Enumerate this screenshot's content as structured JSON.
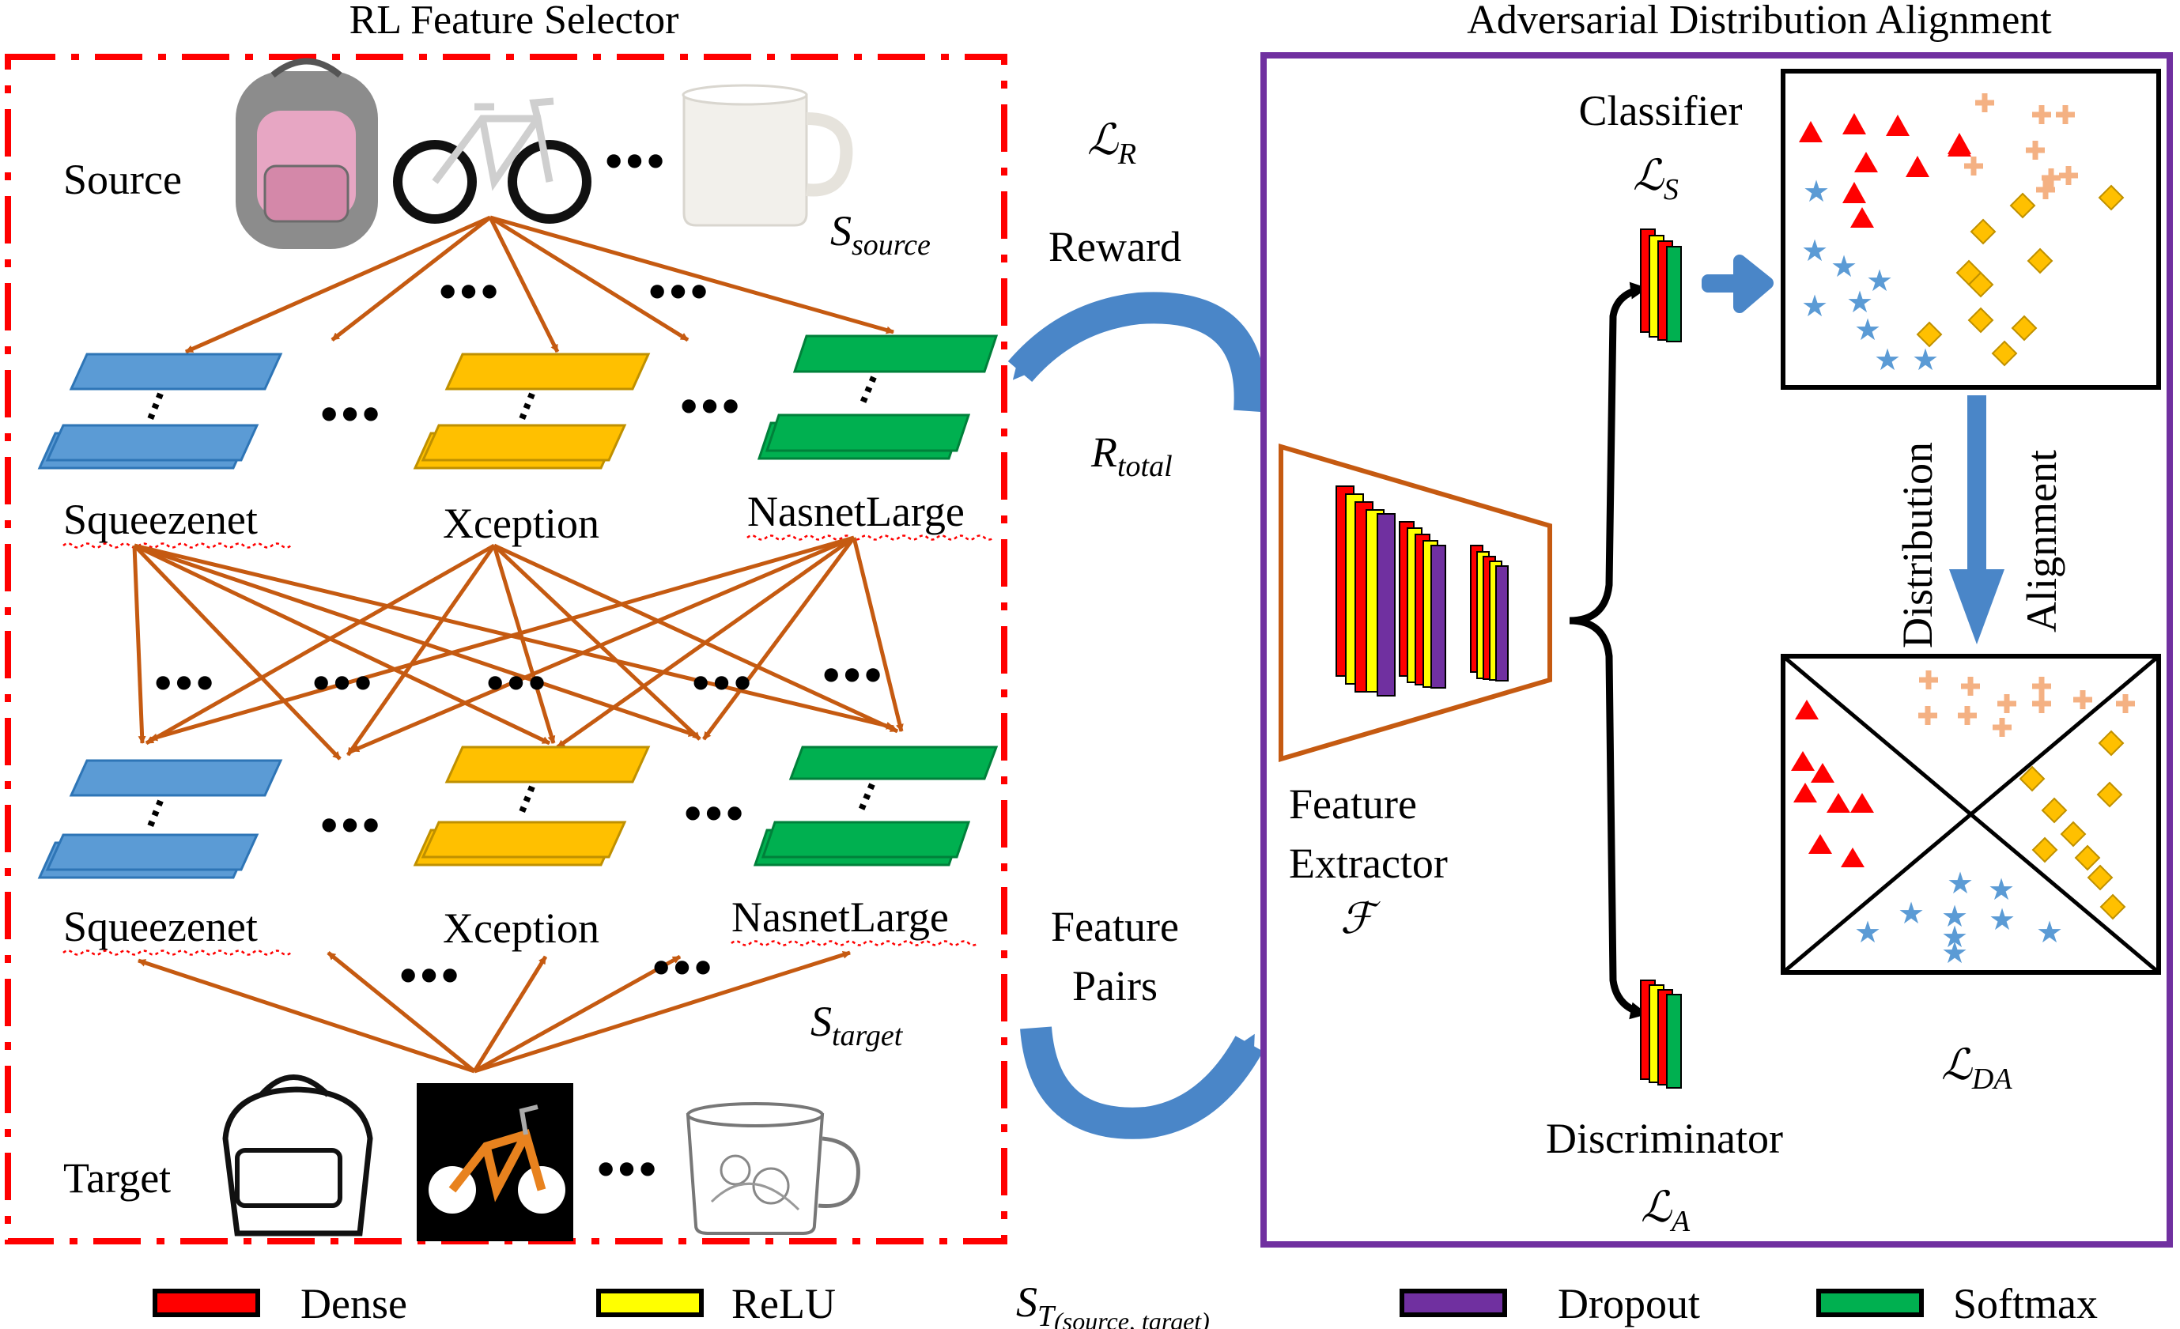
{
  "titles": {
    "rl_feature_selector": "RL  Feature Selector",
    "adversarial_alignment": "Adversarial Distribution Alignment"
  },
  "domains": {
    "source": "Source",
    "target": "Target",
    "s_source_main": "S",
    "s_source_sub": "source",
    "s_target_main": "S",
    "s_target_sub": "target"
  },
  "networks": {
    "top": [
      "Squeezenet",
      "Xception",
      "NasnetLarge"
    ],
    "bottom": [
      "Squeezenet",
      "Xception",
      "NasnetLarge"
    ]
  },
  "dots": "•••",
  "middle": {
    "loss_r": "ℒ",
    "loss_r_sub": "R",
    "reward": "Reward",
    "r_total_main": "R",
    "r_total_sub": "total",
    "feature_pairs_line1": "Feature",
    "feature_pairs_line2": "Pairs"
  },
  "right": {
    "classifier": "Classifier",
    "loss_s": "ℒ",
    "loss_s_sub": "S",
    "feature_extractor_line1": "Feature",
    "feature_extractor_line2": "Extractor",
    "feature_extractor_symbol": "ℱ",
    "discriminator": "Discriminator",
    "loss_a": "ℒ",
    "loss_a_sub": "A",
    "distribution": "Distribution",
    "alignment": "Alignment",
    "loss_da": "ℒ",
    "loss_da_sub": "DA"
  },
  "legend": {
    "items": [
      {
        "label": "Dense",
        "color": "#ff0000"
      },
      {
        "label": "ReLU",
        "color": "#ffff00"
      },
      {
        "label": "Dropout",
        "color": "#7030a0"
      },
      {
        "label": "Softmax",
        "color": "#00b050"
      }
    ],
    "set_main": "S",
    "set_sub_t": "T",
    "set_sub_rest": "(source, target)"
  },
  "colors": {
    "squeezenet": "#5b9bd5",
    "xception": "#ffc000",
    "nasnet": "#00b050",
    "arrow": "#c55a11",
    "frame_left": "#ff0000",
    "frame_right": "#7030a0",
    "cycle_arrow": "#4a86c8",
    "triangle": "#ff0000",
    "cross": "#f4b183",
    "star": "#5b9bd5",
    "diamond": "#ffc000"
  },
  "icons": {
    "source_images": [
      "backpack-photo",
      "bicycle-photo",
      "mug-photo"
    ],
    "target_images": [
      "backpack-sketch",
      "bicycle-clipart",
      "mug-sketch"
    ]
  }
}
